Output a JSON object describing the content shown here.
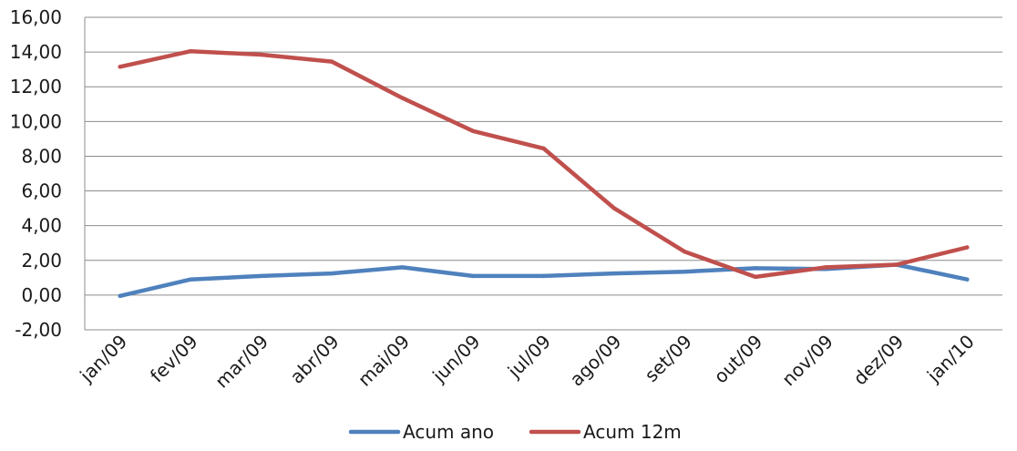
{
  "chart_data": {
    "type": "line",
    "title": "",
    "xlabel": "",
    "ylabel": "",
    "ylim": [
      -2,
      16
    ],
    "y_tick_step": 2,
    "y_tick_labels": [
      "-2,00",
      "0,00",
      "2,00",
      "4,00",
      "6,00",
      "8,00",
      "10,00",
      "12,00",
      "14,00",
      "16,00"
    ],
    "grid": true,
    "legend_position": "bottom",
    "categories": [
      "jan/09",
      "fev/09",
      "mar/09",
      "abr/09",
      "mai/09",
      "jun/09",
      "jul/09",
      "ago/09",
      "set/09",
      "out/09",
      "nov/09",
      "dez/09",
      "jan/10"
    ],
    "series": [
      {
        "name": "Acum ano",
        "color": "#4F81BD",
        "values": [
          -0.05,
          0.9,
          1.1,
          1.25,
          1.6,
          1.1,
          1.1,
          1.25,
          1.35,
          1.55,
          1.5,
          1.75,
          0.9
        ]
      },
      {
        "name": "Acum 12m",
        "color": "#C0504D",
        "values": [
          13.15,
          14.05,
          13.85,
          13.45,
          11.35,
          9.45,
          8.45,
          5.0,
          2.5,
          1.05,
          1.6,
          1.75,
          2.75
        ]
      }
    ]
  }
}
